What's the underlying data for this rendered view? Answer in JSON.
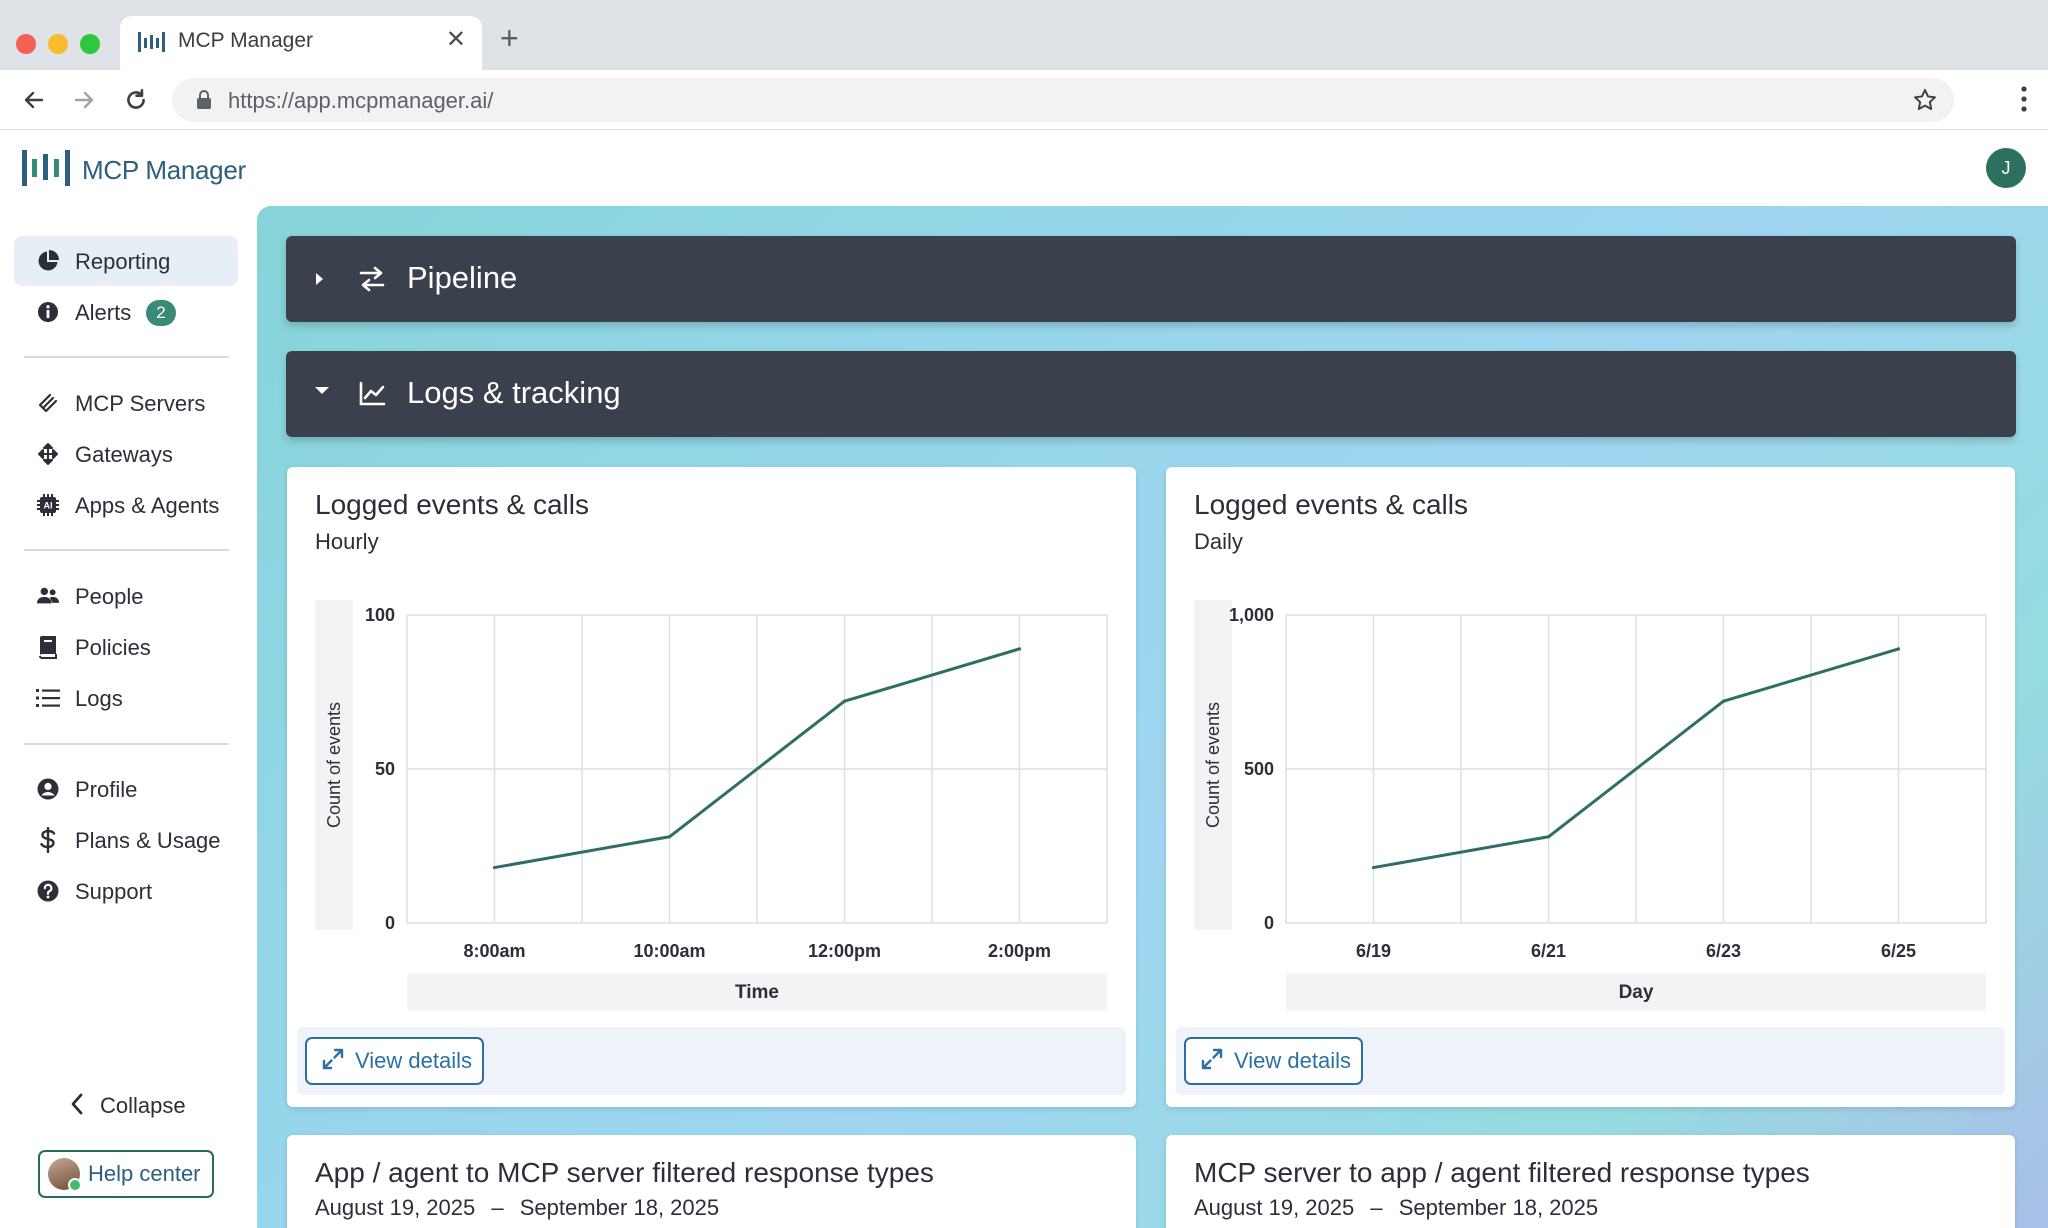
{
  "browser": {
    "tab_title": "MCP Manager",
    "url": "https://app.mcpmanager.ai/"
  },
  "app": {
    "brand": "MCP Manager",
    "user_initial": "J",
    "accent_color": "#2e7060"
  },
  "sidebar": {
    "items": [
      {
        "label": "Reporting",
        "icon": "pie-chart-icon",
        "active": true
      },
      {
        "label": "Alerts",
        "icon": "info-icon",
        "badge": "2"
      },
      {
        "label": "MCP Servers",
        "icon": "server-plug-icon"
      },
      {
        "label": "Gateways",
        "icon": "gateway-arrows-icon"
      },
      {
        "label": "Apps & Agents",
        "icon": "ai-chip-icon"
      },
      {
        "label": "People",
        "icon": "people-icon"
      },
      {
        "label": "Policies",
        "icon": "book-icon"
      },
      {
        "label": "Logs",
        "icon": "list-icon"
      },
      {
        "label": "Profile",
        "icon": "user-circle-icon"
      },
      {
        "label": "Plans & Usage",
        "icon": "dollar-icon"
      },
      {
        "label": "Support",
        "icon": "question-circle-icon"
      }
    ],
    "collapse_label": "Collapse",
    "help_label": "Help center"
  },
  "sections": {
    "pipeline": {
      "title": "Pipeline",
      "expanded": false
    },
    "logs": {
      "title": "Logs & tracking",
      "expanded": true
    }
  },
  "cards": {
    "hourly": {
      "title": "Logged events & calls",
      "subtitle": "Hourly",
      "view_label": "View details"
    },
    "daily": {
      "title": "Logged events & calls",
      "subtitle": "Daily",
      "view_label": "View details"
    },
    "app_to_server": {
      "title": "App / agent to MCP server filtered response types",
      "date_from": "August 19, 2025",
      "date_sep": "–",
      "date_to": "September 18, 2025"
    },
    "server_to_app": {
      "title": "MCP server to app / agent filtered response types",
      "date_from": "August 19, 2025",
      "date_sep": "–",
      "date_to": "September 18, 2025"
    }
  },
  "chart_data": [
    {
      "type": "line",
      "title": "Logged events & calls",
      "subtitle": "Hourly",
      "xlabel": "Time",
      "ylabel": "Count of events",
      "x": [
        "8:00am",
        "10:00am",
        "12:00pm",
        "2:00pm"
      ],
      "series": [
        {
          "values": [
            18,
            28,
            72,
            89
          ]
        }
      ],
      "y_ticks": [
        "0",
        "50",
        "100"
      ],
      "y_tick_values": [
        0,
        50,
        100
      ],
      "ylim": [
        0,
        100
      ],
      "grid": true,
      "line_color": "#2f6e63"
    },
    {
      "type": "line",
      "title": "Logged events & calls",
      "subtitle": "Daily",
      "xlabel": "Day",
      "ylabel": "Count of events",
      "x": [
        "6/19",
        "6/21",
        "6/23",
        "6/25"
      ],
      "series": [
        {
          "values": [
            180,
            280,
            720,
            890
          ]
        }
      ],
      "y_ticks": [
        "0",
        "500",
        "1,000"
      ],
      "y_tick_values": [
        0,
        500,
        1000
      ],
      "ylim": [
        0,
        1000
      ],
      "grid": true,
      "line_color": "#2f6e63"
    }
  ]
}
